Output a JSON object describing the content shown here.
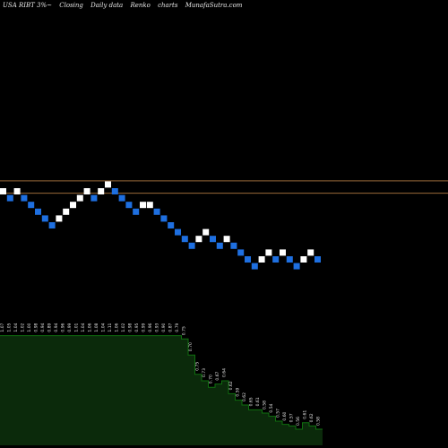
{
  "header": {
    "ticker": "USA RIBT 3%~",
    "type": "Closing",
    "freq": "Daily data",
    "kind": "Renko",
    "word": "charts",
    "site": "MunafaSutra.com"
  },
  "colors": {
    "up_brick": "#ffffff",
    "down_brick": "#1e6fe0",
    "reference_line": "#9a6a3a",
    "volume_fill": "#0b2a0b",
    "volume_edge": "#0f6f0f",
    "label": "#e6e6e6"
  },
  "chart_data": {
    "type": "renko",
    "bricks": [
      {
        "d": "up",
        "level": 28
      },
      {
        "d": "down",
        "level": 27
      },
      {
        "d": "up",
        "level": 28
      },
      {
        "d": "down",
        "level": 27
      },
      {
        "d": "down",
        "level": 26
      },
      {
        "d": "down",
        "level": 25
      },
      {
        "d": "down",
        "level": 24
      },
      {
        "d": "down",
        "level": 23
      },
      {
        "d": "up",
        "level": 24
      },
      {
        "d": "up",
        "level": 25
      },
      {
        "d": "up",
        "level": 26
      },
      {
        "d": "up",
        "level": 27
      },
      {
        "d": "up",
        "level": 28
      },
      {
        "d": "down",
        "level": 27
      },
      {
        "d": "up",
        "level": 28
      },
      {
        "d": "up",
        "level": 29
      },
      {
        "d": "down",
        "level": 28
      },
      {
        "d": "down",
        "level": 27
      },
      {
        "d": "down",
        "level": 26
      },
      {
        "d": "down",
        "level": 25
      },
      {
        "d": "up",
        "level": 26
      },
      {
        "d": "up",
        "level": 26
      },
      {
        "d": "down",
        "level": 25
      },
      {
        "d": "down",
        "level": 24
      },
      {
        "d": "down",
        "level": 23
      },
      {
        "d": "down",
        "level": 22
      },
      {
        "d": "down",
        "level": 21
      },
      {
        "d": "down",
        "level": 20
      },
      {
        "d": "up",
        "level": 21
      },
      {
        "d": "up",
        "level": 22
      },
      {
        "d": "down",
        "level": 21
      },
      {
        "d": "down",
        "level": 20
      },
      {
        "d": "up",
        "level": 21
      },
      {
        "d": "down",
        "level": 20
      },
      {
        "d": "down",
        "level": 19
      },
      {
        "d": "down",
        "level": 18
      },
      {
        "d": "down",
        "level": 17
      },
      {
        "d": "up",
        "level": 18
      },
      {
        "d": "up",
        "level": 19
      },
      {
        "d": "down",
        "level": 18
      },
      {
        "d": "up",
        "level": 19
      },
      {
        "d": "down",
        "level": 18
      },
      {
        "d": "down",
        "level": 17
      },
      {
        "d": "up",
        "level": 18
      },
      {
        "d": "up",
        "level": 19
      },
      {
        "d": "down",
        "level": 18
      }
    ],
    "reference_levels": [
      29,
      27.2
    ],
    "volume_labels": [
      "1.07",
      "1.05",
      "1.04",
      "1.02",
      "1.00",
      "0.98",
      "0.94",
      "0.89",
      "0.94",
      "0.96",
      "0.99",
      "1.01",
      "1.04",
      "1.06",
      "1.08",
      "1.04",
      "1.11",
      "1.06",
      "1.02",
      "0.98",
      "0.95",
      "0.99",
      "0.96",
      "0.93",
      "0.90",
      "0.87",
      "0.79",
      "0.75",
      "0.70",
      "0.75",
      "0.73",
      "0.70",
      "0.67",
      "0.64",
      "0.62",
      "0.59",
      "0.62",
      "0.65",
      "0.61",
      "0.58",
      "0.54",
      "0.57",
      "0.60",
      "0.57",
      "0.56",
      "0.61",
      "0.62",
      "0.58"
    ],
    "volume_bars": [
      0.68,
      0.68,
      0.68,
      0.68,
      0.68,
      0.68,
      0.68,
      0.68,
      0.68,
      0.68,
      0.68,
      0.68,
      0.68,
      0.68,
      0.68,
      0.68,
      0.68,
      0.68,
      0.68,
      0.68,
      0.68,
      0.68,
      0.68,
      0.68,
      0.68,
      0.68,
      0.68,
      0.66,
      0.56,
      0.44,
      0.4,
      0.36,
      0.38,
      0.4,
      0.32,
      0.28,
      0.25,
      0.22,
      0.22,
      0.2,
      0.18,
      0.15,
      0.13,
      0.12,
      0.1,
      0.14,
      0.12,
      0.1
    ]
  }
}
